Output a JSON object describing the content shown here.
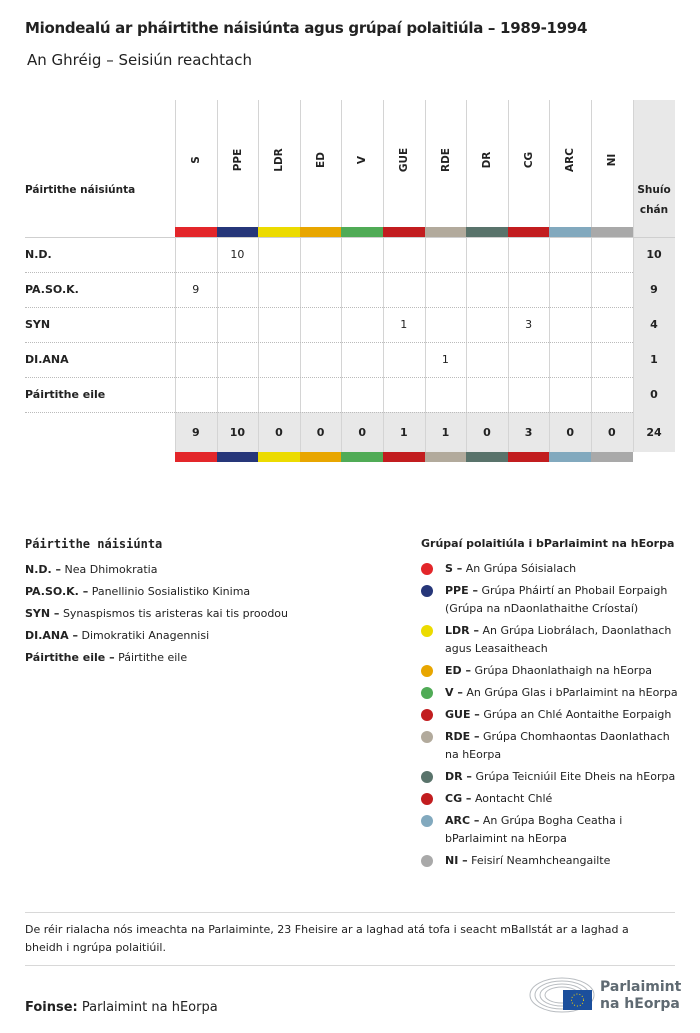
{
  "title": "Miondealú ar pháirtithe náisiúnta agus grúpaí polaitiúla – 1989-1994",
  "subtitle": "An Ghréig – Seisiún reachtach",
  "chart_data": {
    "type": "table",
    "row_header": "Páirtithe náisiúnta",
    "total_header": "Shuío chán",
    "columns": [
      {
        "code": "S",
        "color": "#e3262a"
      },
      {
        "code": "PPE",
        "color": "#263679"
      },
      {
        "code": "LDR",
        "color": "#ecdb00"
      },
      {
        "code": "ED",
        "color": "#e8a600"
      },
      {
        "code": "V",
        "color": "#50ab56"
      },
      {
        "code": "GUE",
        "color": "#c21d1f"
      },
      {
        "code": "RDE",
        "color": "#b2aa9c"
      },
      {
        "code": "DR",
        "color": "#59736b"
      },
      {
        "code": "CG",
        "color": "#c21d1f"
      },
      {
        "code": "ARC",
        "color": "#82a9be"
      },
      {
        "code": "NI",
        "color": "#a9a9a9"
      }
    ],
    "rows": [
      {
        "party": "N.D.",
        "values": [
          "",
          "10",
          "",
          "",
          "",
          "",
          "",
          "",
          "",
          "",
          ""
        ],
        "total": "10"
      },
      {
        "party": "PA.SO.K.",
        "values": [
          "9",
          "",
          "",
          "",
          "",
          "",
          "",
          "",
          "",
          "",
          ""
        ],
        "total": "9"
      },
      {
        "party": "SYN",
        "values": [
          "",
          "",
          "",
          "",
          "",
          "1",
          "",
          "",
          "3",
          "",
          ""
        ],
        "total": "4"
      },
      {
        "party": "DI.ANA",
        "values": [
          "",
          "",
          "",
          "",
          "",
          "",
          "1",
          "",
          "",
          "",
          ""
        ],
        "total": "1"
      },
      {
        "party": "Páirtithe eile",
        "values": [
          "",
          "",
          "",
          "",
          "",
          "",
          "",
          "",
          "",
          "",
          ""
        ],
        "total": "0"
      }
    ],
    "totals": [
      "9",
      "10",
      "0",
      "0",
      "0",
      "1",
      "1",
      "0",
      "3",
      "0",
      "0"
    ],
    "grand_total": "24"
  },
  "legend_parties": {
    "title": "Páirtithe náisiúnta",
    "items": [
      {
        "code": "N.D. –",
        "name": "Nea Dhimokratia"
      },
      {
        "code": "PA.SO.K. –",
        "name": "Panellinio Sosialistiko Kinima"
      },
      {
        "code": "SYN –",
        "name": "Synaspismos tis aristeras kai tis proodou"
      },
      {
        "code": "DI.ANA –",
        "name": "Dimokratiki Anagennisi"
      },
      {
        "code": "Páirtithe eile –",
        "name": "Páirtithe eile"
      }
    ]
  },
  "legend_groups": {
    "title": "Grúpaí polaitiúla i bParlaimint na hEorpa",
    "items": [
      {
        "code": "S –",
        "name": "An Grúpa Sóisialach",
        "color": "#e3262a"
      },
      {
        "code": "PPE –",
        "name": "Grúpa Pháirtí an Phobail Eorpaigh (Grúpa na nDaonlathaithe Críostaí)",
        "color": "#263679"
      },
      {
        "code": "LDR –",
        "name": "An Grúpa Liobrálach, Daonlathach agus Leasaitheach",
        "color": "#ecdb00"
      },
      {
        "code": "ED –",
        "name": "Grúpa Dhaonlathaigh na hEorpa",
        "color": "#e8a600"
      },
      {
        "code": "V –",
        "name": "An Grúpa Glas i bParlaimint na hEorpa",
        "color": "#50ab56"
      },
      {
        "code": "GUE –",
        "name": "Grúpa an Chlé Aontaithe Eorpaigh",
        "color": "#c21d1f"
      },
      {
        "code": "RDE –",
        "name": "Grúpa Chomhaontas Daonlathach na hEorpa",
        "color": "#b2aa9c"
      },
      {
        "code": "DR –",
        "name": "Grúpa Teicniúil Eite Dheis na hEorpa",
        "color": "#59736b"
      },
      {
        "code": "CG –",
        "name": "Aontacht Chlé",
        "color": "#c21d1f"
      },
      {
        "code": "ARC –",
        "name": "An Grúpa Bogha Ceatha i bParlaimint na hEorpa",
        "color": "#82a9be"
      },
      {
        "code": "NI –",
        "name": "Feisirí Neamhcheangailte",
        "color": "#a9a9a9"
      }
    ]
  },
  "note": "De réir rialacha nós imeachta na Parlaiminte, 23 Fheisire ar a laghad atá tofa i seacht mBallstát ar a laghad a bheidh i ngrúpa polaitiúil.",
  "source_label": "Foinse:",
  "source": "Parlaimint na hEorpa",
  "logo_text": "Parlaimint na hEorpa"
}
